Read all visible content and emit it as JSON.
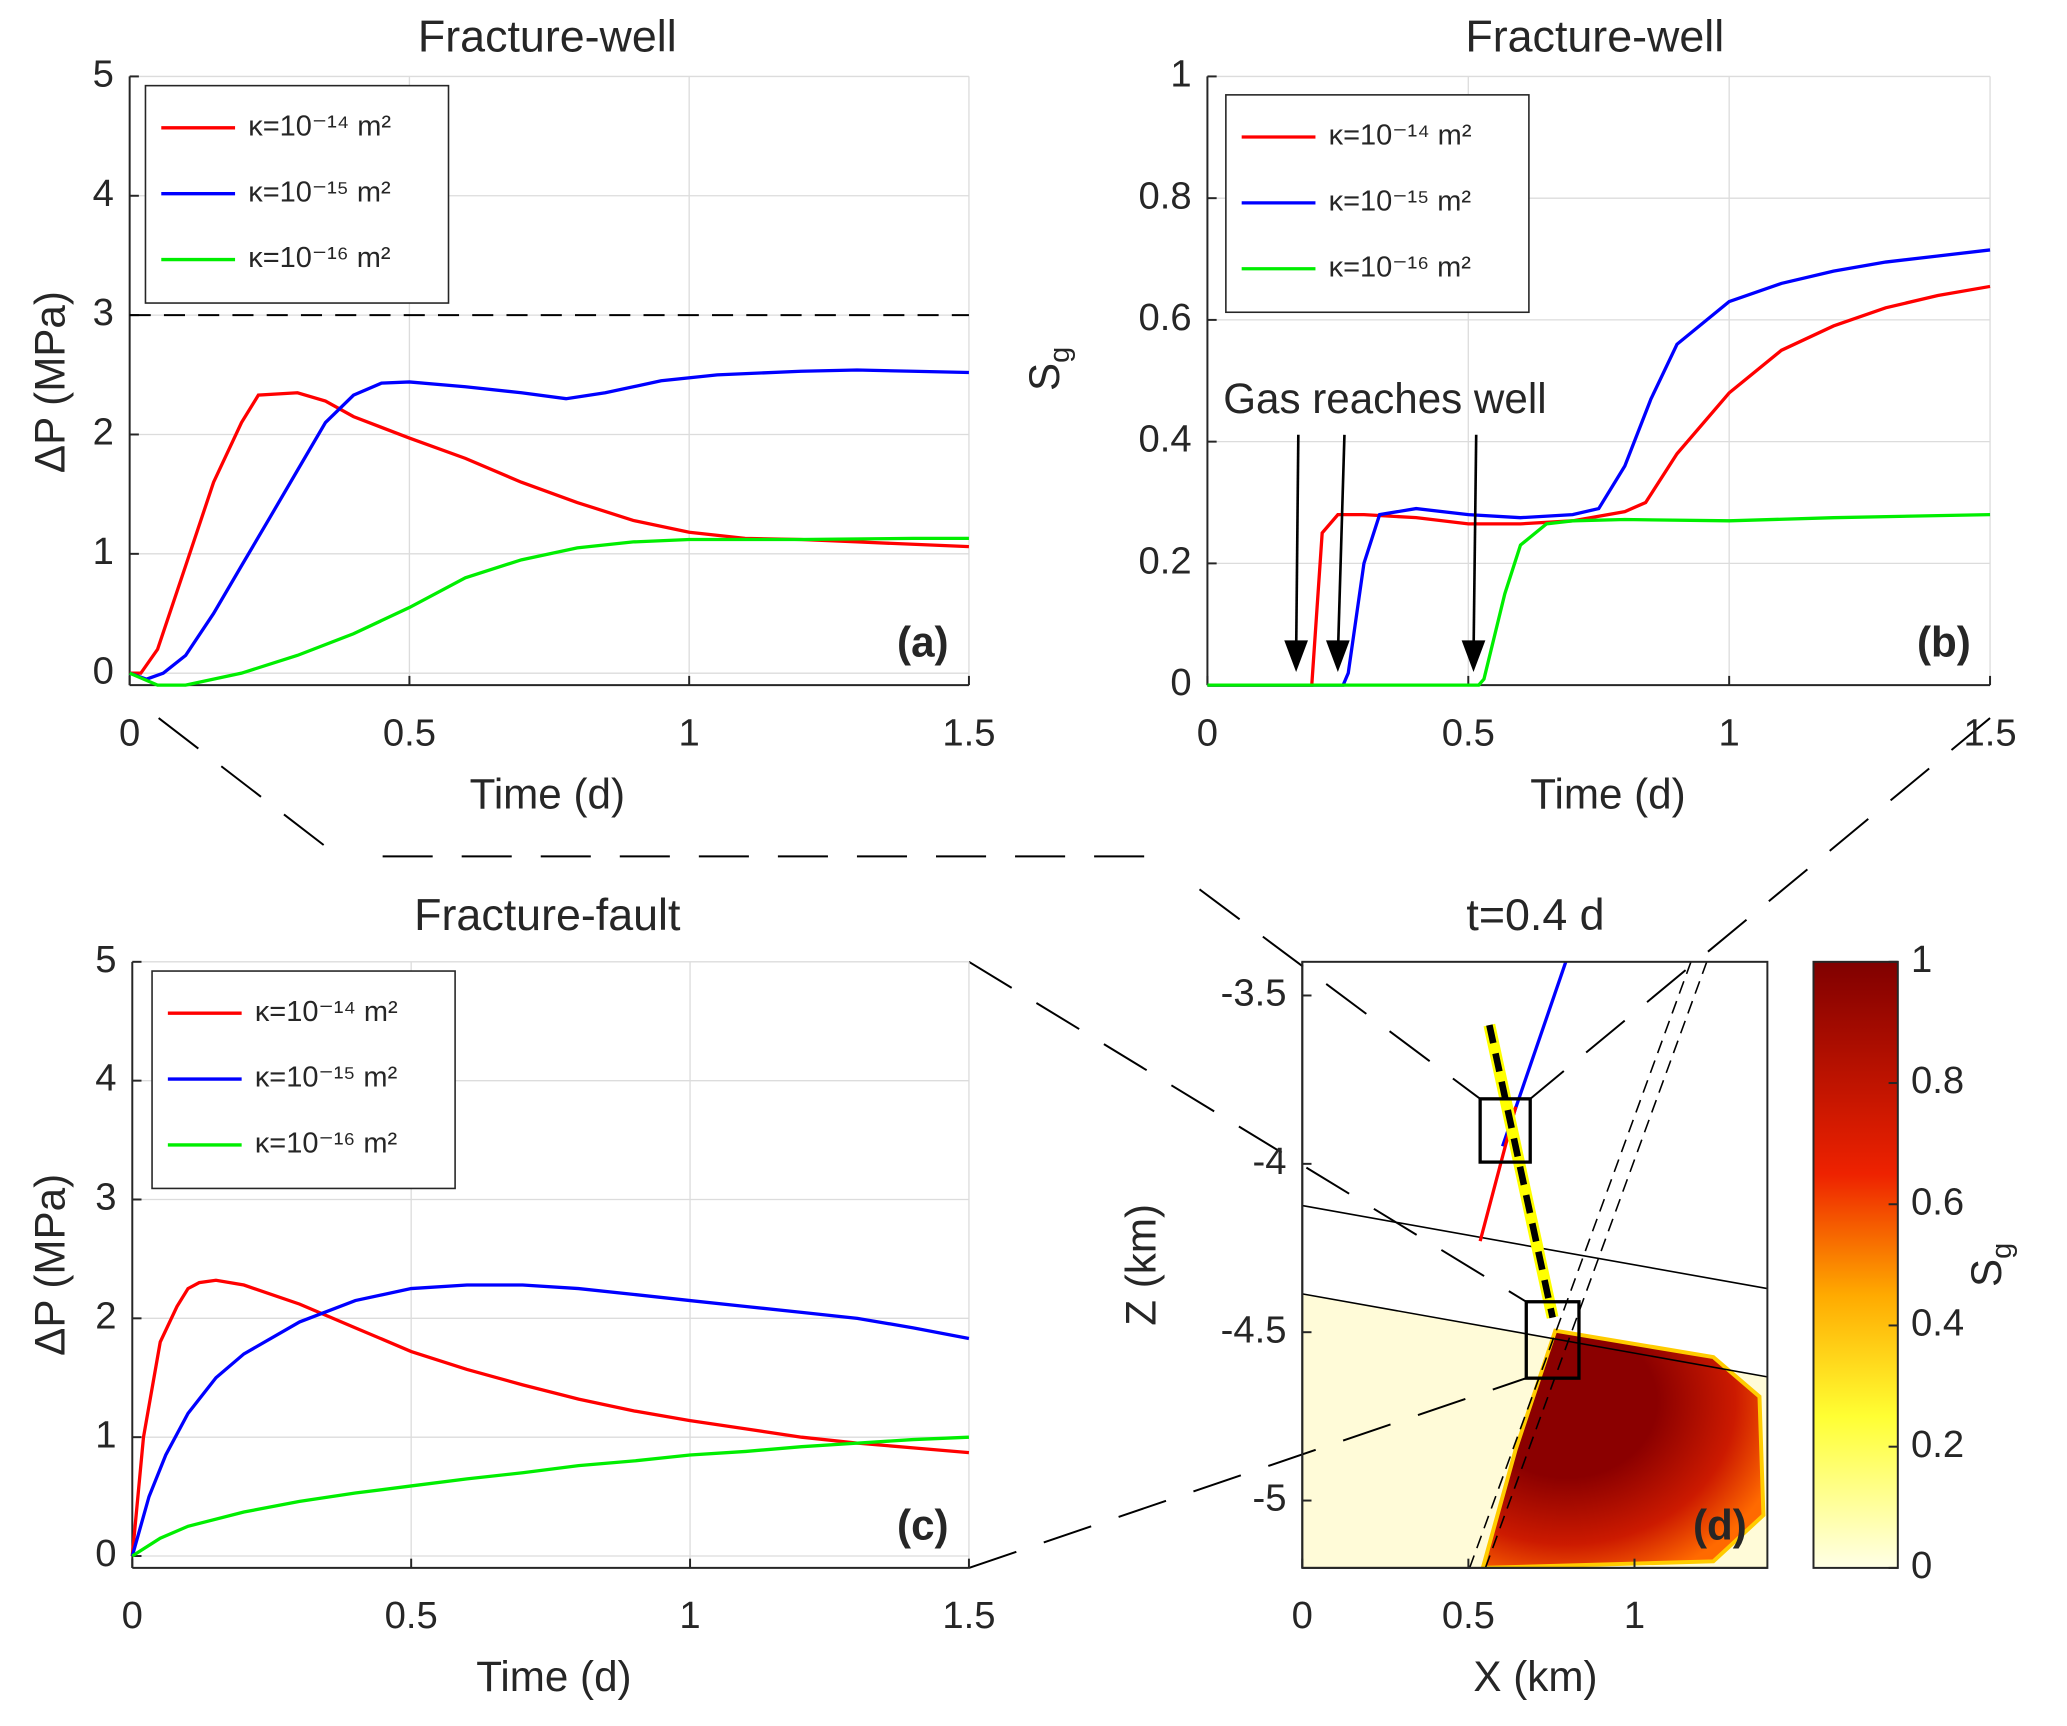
{
  "chart_data": [
    {
      "type": "line",
      "title": "Fracture-well",
      "xlabel": "Time (d)",
      "ylabel": "ΔP (MPa)",
      "panel_label": "(a)",
      "xlim": [
        0,
        1.5
      ],
      "ylim": [
        -0.1,
        5
      ],
      "xticks": [
        0,
        0.5,
        1,
        1.5
      ],
      "yticks": [
        0,
        1,
        2,
        3,
        4,
        5
      ],
      "grid": true,
      "reference_line": 3,
      "legend": "upper left",
      "series": [
        {
          "name": "κ=10⁻¹⁴ m²",
          "color": "#ff0000",
          "x": [
            0,
            0.02,
            0.05,
            0.1,
            0.15,
            0.2,
            0.23,
            0.3,
            0.35,
            0.4,
            0.5,
            0.6,
            0.7,
            0.8,
            0.9,
            1.0,
            1.1,
            1.2,
            1.3,
            1.4,
            1.5
          ],
          "values": [
            0,
            0,
            0.2,
            0.9,
            1.6,
            2.1,
            2.33,
            2.35,
            2.28,
            2.15,
            1.97,
            1.8,
            1.6,
            1.43,
            1.28,
            1.18,
            1.13,
            1.12,
            1.1,
            1.08,
            1.06
          ]
        },
        {
          "name": "κ=10⁻¹⁵ m²",
          "color": "#0000ff",
          "x": [
            0,
            0.03,
            0.06,
            0.1,
            0.15,
            0.2,
            0.25,
            0.3,
            0.35,
            0.4,
            0.45,
            0.5,
            0.6,
            0.7,
            0.78,
            0.85,
            0.95,
            1.05,
            1.2,
            1.3,
            1.4,
            1.5
          ],
          "values": [
            0,
            -0.05,
            0,
            0.15,
            0.5,
            0.9,
            1.3,
            1.7,
            2.1,
            2.33,
            2.43,
            2.44,
            2.4,
            2.35,
            2.3,
            2.35,
            2.45,
            2.5,
            2.53,
            2.54,
            2.53,
            2.52
          ]
        },
        {
          "name": "κ=10⁻¹⁶ m²",
          "color": "#00ee00",
          "x": [
            0,
            0.05,
            0.1,
            0.2,
            0.3,
            0.4,
            0.5,
            0.6,
            0.7,
            0.8,
            0.9,
            1.0,
            1.2,
            1.4,
            1.5
          ],
          "values": [
            0,
            -0.1,
            -0.1,
            0,
            0.15,
            0.33,
            0.55,
            0.8,
            0.95,
            1.05,
            1.1,
            1.12,
            1.12,
            1.13,
            1.13
          ]
        }
      ]
    },
    {
      "type": "line",
      "title": "Fracture-well",
      "xlabel": "Time (d)",
      "ylabel_main": "S",
      "ylabel_sub": "g",
      "panel_label": "(b)",
      "xlim": [
        0,
        1.5
      ],
      "ylim": [
        0,
        1
      ],
      "xticks": [
        0,
        0.5,
        1,
        1.5
      ],
      "yticks": [
        0,
        0.2,
        0.4,
        0.6,
        0.8,
        1
      ],
      "grid": true,
      "legend": "upper left",
      "annotation": {
        "text": "Gas reaches well",
        "x_points": [
          0.17,
          0.25,
          0.51
        ]
      },
      "series": [
        {
          "name": "κ=10⁻¹⁴ m²",
          "color": "#ff0000",
          "x": [
            0,
            0.18,
            0.2,
            0.22,
            0.25,
            0.3,
            0.4,
            0.5,
            0.6,
            0.7,
            0.8,
            0.84,
            0.9,
            1.0,
            1.1,
            1.2,
            1.3,
            1.4,
            1.5
          ],
          "values": [
            0,
            0,
            0,
            0.25,
            0.28,
            0.28,
            0.275,
            0.265,
            0.265,
            0.27,
            0.285,
            0.3,
            0.38,
            0.48,
            0.55,
            0.59,
            0.62,
            0.64,
            0.655
          ]
        },
        {
          "name": "κ=10⁻¹⁵ m²",
          "color": "#0000ff",
          "x": [
            0,
            0.26,
            0.27,
            0.3,
            0.33,
            0.4,
            0.5,
            0.6,
            0.7,
            0.75,
            0.8,
            0.85,
            0.9,
            1.0,
            1.1,
            1.2,
            1.3,
            1.4,
            1.5
          ],
          "values": [
            0,
            0,
            0.02,
            0.2,
            0.28,
            0.29,
            0.28,
            0.275,
            0.28,
            0.29,
            0.36,
            0.47,
            0.56,
            0.63,
            0.66,
            0.68,
            0.695,
            0.705,
            0.715
          ]
        },
        {
          "name": "κ=10⁻¹⁶ m²",
          "color": "#00ee00",
          "x": [
            0,
            0.52,
            0.53,
            0.57,
            0.6,
            0.65,
            0.7,
            0.8,
            1.0,
            1.2,
            1.5
          ],
          "values": [
            0,
            0,
            0.01,
            0.15,
            0.23,
            0.265,
            0.27,
            0.272,
            0.27,
            0.275,
            0.28
          ]
        }
      ]
    },
    {
      "type": "line",
      "title": "Fracture-fault",
      "xlabel": "Time (d)",
      "ylabel": "ΔP (MPa)",
      "panel_label": "(c)",
      "xlim": [
        0,
        1.5
      ],
      "ylim": [
        -0.1,
        5
      ],
      "xticks": [
        0,
        0.5,
        1,
        1.5
      ],
      "yticks": [
        0,
        1,
        2,
        3,
        4,
        5
      ],
      "grid": true,
      "legend": "upper left",
      "series": [
        {
          "name": "κ=10⁻¹⁴ m²",
          "color": "#ff0000",
          "x": [
            0,
            0.02,
            0.05,
            0.08,
            0.1,
            0.12,
            0.15,
            0.2,
            0.3,
            0.4,
            0.5,
            0.6,
            0.7,
            0.8,
            0.9,
            1.0,
            1.1,
            1.2,
            1.3,
            1.4,
            1.5
          ],
          "values": [
            0,
            1.0,
            1.8,
            2.1,
            2.25,
            2.3,
            2.32,
            2.28,
            2.12,
            1.92,
            1.72,
            1.57,
            1.44,
            1.32,
            1.22,
            1.14,
            1.07,
            1.0,
            0.95,
            0.91,
            0.87
          ]
        },
        {
          "name": "κ=10⁻¹⁵ m²",
          "color": "#0000ff",
          "x": [
            0,
            0.03,
            0.06,
            0.1,
            0.15,
            0.2,
            0.3,
            0.4,
            0.5,
            0.6,
            0.7,
            0.8,
            0.9,
            1.0,
            1.1,
            1.2,
            1.3,
            1.4,
            1.5
          ],
          "values": [
            0,
            0.5,
            0.85,
            1.2,
            1.5,
            1.7,
            1.97,
            2.15,
            2.25,
            2.28,
            2.28,
            2.25,
            2.2,
            2.15,
            2.1,
            2.05,
            2.0,
            1.92,
            1.83
          ]
        },
        {
          "name": "κ=10⁻¹⁶ m²",
          "color": "#00ee00",
          "x": [
            0,
            0.05,
            0.1,
            0.2,
            0.3,
            0.4,
            0.5,
            0.6,
            0.7,
            0.8,
            0.9,
            1.0,
            1.1,
            1.2,
            1.3,
            1.4,
            1.5
          ],
          "values": [
            0,
            0.15,
            0.25,
            0.37,
            0.46,
            0.53,
            0.59,
            0.65,
            0.7,
            0.76,
            0.8,
            0.85,
            0.88,
            0.92,
            0.95,
            0.98,
            1.0
          ]
        }
      ]
    },
    {
      "type": "heatmap",
      "title": "t=0.4 d",
      "xlabel": "X (km)",
      "ylabel": "Z (km)",
      "panel_label": "(d)",
      "xlim": [
        0,
        1.4
      ],
      "ylim": [
        -5.2,
        -3.4
      ],
      "xticks": [
        0,
        0.5,
        1
      ],
      "yticks": [
        -5,
        -4.5,
        -4,
        -3.5
      ],
      "colorbar_lim": [
        0,
        1
      ],
      "colorbar_ticks": [
        0,
        0.2,
        0.4,
        0.6,
        0.8,
        1
      ],
      "colorbar_label_main": "S",
      "colorbar_label_sub": "g"
    }
  ]
}
